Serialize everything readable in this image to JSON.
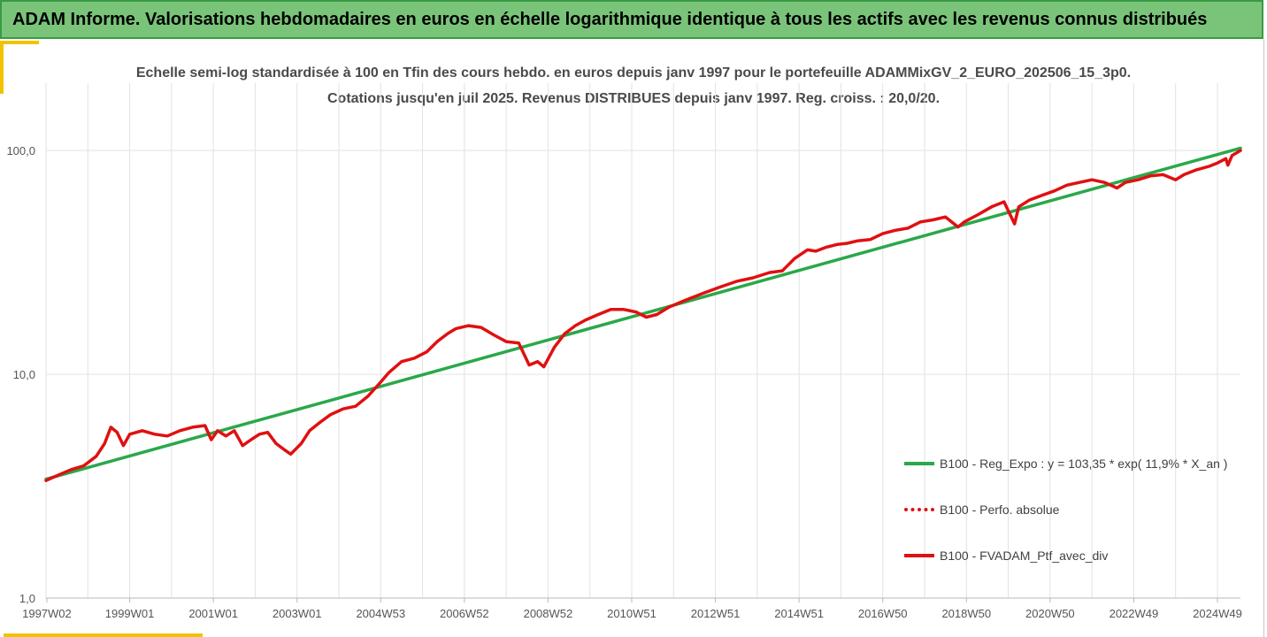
{
  "header": {
    "title": "ADAM Informe. Valorisations hebdomadaires en euros en échelle logarithmique identique à tous les actifs avec les revenus connus distribués"
  },
  "chart_data": {
    "type": "line",
    "title_line1": "Echelle semi-log standardisée  à 100 en Tfin des cours hebdo.  en euros depuis janv 1997 pour le portefeuille ADAMMixGV_2_EURO_202506_15_3p0.",
    "title_line2": "Cotations  jusqu'en juil 2025. Revenus DISTRIBUES depuis janv 1997. Reg. croiss. : 20,0/20.",
    "y_scale": "log",
    "ylim": [
      1,
      200
    ],
    "y_ticks": [
      {
        "value": 1,
        "label": "1,0"
      },
      {
        "value": 10,
        "label": "10,0"
      },
      {
        "value": 100,
        "label": "100,0"
      }
    ],
    "x_range": [
      1997.0,
      2025.55
    ],
    "x_ticks": [
      {
        "pos": 1997.02,
        "label": "1997W02"
      },
      {
        "pos": 1999.0,
        "label": "1999W01"
      },
      {
        "pos": 2001.0,
        "label": "2001W01"
      },
      {
        "pos": 2003.0,
        "label": "2003W01"
      },
      {
        "pos": 2005.0,
        "label": "2004W53"
      },
      {
        "pos": 2007.0,
        "label": "2006W52"
      },
      {
        "pos": 2009.0,
        "label": "2008W52"
      },
      {
        "pos": 2011.0,
        "label": "2010W51"
      },
      {
        "pos": 2013.0,
        "label": "2012W51"
      },
      {
        "pos": 2015.0,
        "label": "2014W51"
      },
      {
        "pos": 2017.0,
        "label": "2016W50"
      },
      {
        "pos": 2019.0,
        "label": "2018W50"
      },
      {
        "pos": 2021.0,
        "label": "2020W50"
      },
      {
        "pos": 2023.0,
        "label": "2022W49"
      },
      {
        "pos": 2025.0,
        "label": "2024W49"
      }
    ],
    "grid": "vertical",
    "legend_position": "bottom-right",
    "series": [
      {
        "name": "B100 - Reg_Expo : y = 103,35 * exp( 11,9% *  X_an )",
        "color": "#2aa84a",
        "style": "solid",
        "x": [
          1997.0,
          2025.55
        ],
        "values": [
          3.4,
          102.5
        ]
      },
      {
        "name": "B100 - Perfo. absolue",
        "color": "#e01010",
        "style": "dotted",
        "x": [],
        "values": []
      },
      {
        "name": "B100 - FVADAM_Ptf_avec_div",
        "color": "#e01010",
        "style": "solid",
        "x": [
          1997.0,
          1997.3,
          1997.6,
          1997.9,
          1998.2,
          1998.4,
          1998.55,
          1998.7,
          1998.85,
          1999.0,
          1999.3,
          1999.6,
          1999.9,
          2000.2,
          2000.5,
          2000.8,
          2000.95,
          2001.1,
          2001.3,
          2001.5,
          2001.7,
          2001.9,
          2002.1,
          2002.3,
          2002.5,
          2002.7,
          2002.85,
          2003.1,
          2003.3,
          2003.55,
          2003.8,
          2004.1,
          2004.4,
          2004.7,
          2004.95,
          2005.2,
          2005.5,
          2005.8,
          2006.1,
          2006.35,
          2006.6,
          2006.8,
          2007.1,
          2007.4,
          2007.7,
          2008.0,
          2008.3,
          2008.55,
          2008.75,
          2008.9,
          2009.15,
          2009.4,
          2009.65,
          2009.9,
          2010.2,
          2010.5,
          2010.8,
          2011.1,
          2011.35,
          2011.6,
          2011.9,
          2012.3,
          2012.7,
          2013.1,
          2013.5,
          2013.9,
          2014.3,
          2014.6,
          2014.9,
          2015.2,
          2015.4,
          2015.65,
          2015.9,
          2016.15,
          2016.4,
          2016.7,
          2017.0,
          2017.3,
          2017.6,
          2017.9,
          2018.2,
          2018.5,
          2018.8,
          2018.95,
          2019.3,
          2019.6,
          2019.9,
          2020.15,
          2020.25,
          2020.5,
          2020.8,
          2021.1,
          2021.4,
          2021.7,
          2022.0,
          2022.3,
          2022.6,
          2022.8,
          2023.1,
          2023.4,
          2023.7,
          2024.0,
          2024.2,
          2024.5,
          2024.8,
          2025.0,
          2025.2,
          2025.25,
          2025.35,
          2025.55
        ],
        "values": [
          3.35,
          3.55,
          3.75,
          3.9,
          4.3,
          4.9,
          5.8,
          5.5,
          4.8,
          5.4,
          5.6,
          5.4,
          5.3,
          5.6,
          5.8,
          5.9,
          5.1,
          5.6,
          5.3,
          5.6,
          4.8,
          5.1,
          5.4,
          5.5,
          4.9,
          4.6,
          4.4,
          4.9,
          5.6,
          6.1,
          6.6,
          7.0,
          7.2,
          8.0,
          9.0,
          10.2,
          11.4,
          11.8,
          12.6,
          14.0,
          15.2,
          16.0,
          16.5,
          16.2,
          15.0,
          14.0,
          13.8,
          11.0,
          11.4,
          10.8,
          13.2,
          15.2,
          16.5,
          17.5,
          18.5,
          19.5,
          19.5,
          19.0,
          18.0,
          18.5,
          20.0,
          21.5,
          23.0,
          24.5,
          26.0,
          27.0,
          28.5,
          29.0,
          33.0,
          36.0,
          35.5,
          37.0,
          38.0,
          38.5,
          39.5,
          40.0,
          42.5,
          44.0,
          45.0,
          48.0,
          49.0,
          50.5,
          45.5,
          48.0,
          52.0,
          56.0,
          59.0,
          47.0,
          56.0,
          60.0,
          63.0,
          66.0,
          70.0,
          72.0,
          74.0,
          72.0,
          68.0,
          72.0,
          74.0,
          77.0,
          78.0,
          74.0,
          78.0,
          82.0,
          85.0,
          88.0,
          92.0,
          86.0,
          95.0,
          100.0
        ]
      }
    ]
  }
}
